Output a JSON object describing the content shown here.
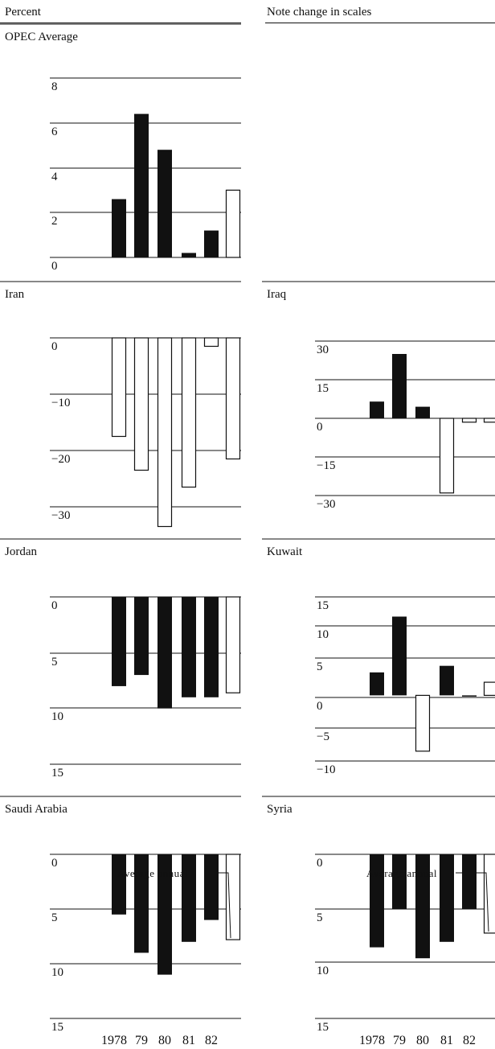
{
  "header": {
    "left_label": "Percent",
    "center_label": "Note change in scales",
    "annotation_label": "Average annual"
  },
  "chart_data": [
    {
      "type": "bar",
      "title": "OPEC Average",
      "categories": [
        "1978",
        "79",
        "80",
        "81",
        "82",
        "Average annual"
      ],
      "values": [
        2.6,
        6.4,
        4.8,
        0.2,
        1.2,
        3.0
      ],
      "ylim": [
        0,
        8
      ],
      "yticks": [
        0,
        2,
        4,
        6,
        8
      ],
      "ytick_labels": [
        "0",
        "2",
        "4",
        "6",
        "8"
      ],
      "grid": true
    },
    {
      "type": "bar",
      "title": "Iran",
      "categories": [
        "1978",
        "79",
        "80",
        "81",
        "82",
        "Average annual"
      ],
      "values": [
        -17.5,
        -23.5,
        -33.5,
        -26.5,
        -1.5,
        -21.5
      ],
      "ylim": [
        -35,
        0
      ],
      "yticks": [
        0,
        -10,
        -20,
        -30
      ],
      "ytick_labels": [
        "0",
        "−10",
        "−20",
        "−30"
      ],
      "grid": true
    },
    {
      "type": "bar",
      "title": "Iraq",
      "categories": [
        "1978",
        "79",
        "80",
        "81",
        "82",
        "Average annual"
      ],
      "values": [
        6.5,
        25,
        4.5,
        -29,
        -1.5,
        -1.5
      ],
      "ylim": [
        -30,
        30
      ],
      "yticks": [
        30,
        15,
        0,
        -15,
        -30
      ],
      "ytick_labels": [
        "30",
        "15",
        "0",
        "−15",
        "−30"
      ],
      "grid": true
    },
    {
      "type": "bar",
      "title": "Jordan",
      "categories": [
        "1978",
        "79",
        "80",
        "81",
        "82",
        "Average annual"
      ],
      "values": [
        8,
        7,
        10,
        9,
        9,
        8.6
      ],
      "ylim": [
        0,
        15
      ],
      "yticks": [
        0,
        5,
        10,
        15
      ],
      "ytick_labels": [
        "0",
        "5",
        "10",
        "15"
      ],
      "grid": true
    },
    {
      "type": "bar",
      "title": "Kuwait",
      "categories": [
        "1978",
        "79",
        "80",
        "81",
        "82",
        "Average annual"
      ],
      "values": [
        3.5,
        12,
        -8.5,
        4.5,
        0,
        2.0
      ],
      "ylim": [
        -10,
        15
      ],
      "yticks": [
        15,
        10,
        5,
        0,
        -5,
        -10
      ],
      "ytick_labels": [
        "15",
        "10",
        "5",
        "0",
        "−5",
        "−10"
      ],
      "grid": true
    },
    {
      "type": "bar",
      "title": "Saudi Arabia",
      "categories": [
        "1978",
        "79",
        "80",
        "81",
        "82",
        "Average annual"
      ],
      "values": [
        5.5,
        9,
        11,
        8,
        6,
        7.8
      ],
      "ylim": [
        0,
        15
      ],
      "yticks": [
        0,
        5,
        10,
        15
      ],
      "ytick_labels": [
        "0",
        "5",
        "10",
        "15"
      ],
      "xtick_labels": [
        "1978",
        "79",
        "80",
        "81",
        "82"
      ],
      "grid": true
    },
    {
      "type": "bar",
      "title": "Syria",
      "categories": [
        "1978",
        "79",
        "80",
        "81",
        "82",
        "Average annual"
      ],
      "values": [
        8.5,
        5,
        9.5,
        8,
        5,
        7.2
      ],
      "ylim": [
        0,
        15
      ],
      "yticks": [
        0,
        5,
        10,
        15
      ],
      "ytick_labels": [
        "0",
        "5",
        "10",
        "15"
      ],
      "xtick_labels": [
        "1978",
        "79",
        "80",
        "81",
        "82"
      ],
      "grid": true
    }
  ]
}
